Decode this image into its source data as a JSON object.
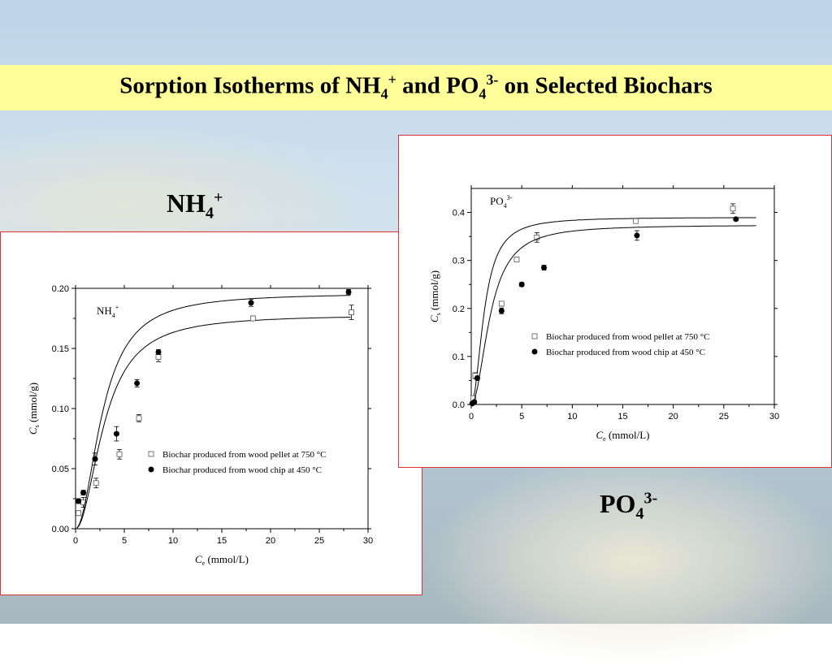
{
  "slide": {
    "title_prefix": "Sorption Isotherms of NH",
    "title_nh_sub": "4",
    "title_nh_sup": "+",
    "title_mid": " and PO",
    "title_po_sub": "4",
    "title_po_sup": "3-",
    "title_suffix": " on Selected Biochars",
    "nh_label": "NH",
    "nh_label_sub": "4",
    "nh_label_sup": "+",
    "po_label": "PO",
    "po_label_sub": "4",
    "po_label_sup": "3-"
  },
  "colors": {
    "title_band": "#ffff99",
    "panel_border": "#dd3333"
  },
  "chart_data": [
    {
      "type": "scatter",
      "inset_label": "NH",
      "inset_sub": "4",
      "inset_sup": "+",
      "xlabel": "C",
      "xlabel_sub": "e",
      "xlabel_unit": " (mmol/L)",
      "ylabel": "C",
      "ylabel_sub": "s",
      "ylabel_unit": " (mmol/g)",
      "xlim": [
        0,
        30
      ],
      "ylim": [
        0,
        0.2
      ],
      "xticks": [
        "0",
        "5",
        "10",
        "15",
        "20",
        "25",
        "30"
      ],
      "yticks": [
        "0.00",
        "0.05",
        "0.10",
        "0.15",
        "0.20"
      ],
      "legend_position": "lower-right",
      "series": [
        {
          "name": "Biochar produced from wood pellet at 750 °C",
          "marker": "open-square",
          "x": [
            0.3,
            0.8,
            2.1,
            4.5,
            6.5,
            8.5,
            18.2,
            28.3
          ],
          "y": [
            0.013,
            0.022,
            0.038,
            0.062,
            0.092,
            0.143,
            0.175,
            0.18
          ],
          "err": [
            0.002,
            0.004,
            0.004,
            0.004,
            0.003,
            0.004,
            0.002,
            0.006
          ],
          "fit": [
            0.0,
            0.178,
            3.0,
            6.8
          ]
        },
        {
          "name": "Biochar produced from wood chip at 450 °C",
          "marker": "filled-circle",
          "x": [
            0.3,
            0.8,
            2.0,
            4.2,
            6.3,
            8.5,
            18.0,
            28.0
          ],
          "y": [
            0.023,
            0.03,
            0.058,
            0.079,
            0.121,
            0.147,
            0.188,
            0.197
          ],
          "err": [
            0.002,
            0.002,
            0.005,
            0.006,
            0.003,
            0.002,
            0.003,
            0.002
          ],
          "fit": [
            0.0,
            0.196,
            2.8,
            6.0
          ]
        }
      ]
    },
    {
      "type": "scatter",
      "inset_label": "PO",
      "inset_sub": "4",
      "inset_sup": "3-",
      "xlabel": "C",
      "xlabel_sub": "e",
      "xlabel_unit": " (mmol/L)",
      "ylabel": "C",
      "ylabel_sub": "s",
      "ylabel_unit": " (mmol/g)",
      "xlim": [
        0,
        30
      ],
      "ylim": [
        0,
        0.45
      ],
      "xticks": [
        "0",
        "5",
        "10",
        "15",
        "20",
        "25",
        "30"
      ],
      "yticks": [
        "0.0",
        "0.1",
        "0.2",
        "0.3",
        "0.4"
      ],
      "legend_position": "center-right",
      "series": [
        {
          "name": "Biochar produced from wood pellet at 750 °C",
          "marker": "open-square",
          "x": [
            0.2,
            0.4,
            3.0,
            4.5,
            6.5,
            16.3,
            25.9
          ],
          "y": [
            0.013,
            0.06,
            0.21,
            0.302,
            0.348,
            0.382,
            0.408
          ],
          "err": [
            0.004,
            0.006,
            0.005,
            0.004,
            0.01,
            0.004,
            0.01
          ],
          "fit": [
            0.0,
            0.39,
            1.3,
            3.0
          ]
        },
        {
          "name": "Biochar produced from wood chip at 450 °C",
          "marker": "filled-circle",
          "x": [
            0.1,
            0.3,
            0.6,
            3.0,
            5.0,
            7.2,
            16.4,
            26.2
          ],
          "y": [
            0.002,
            0.005,
            0.055,
            0.195,
            0.25,
            0.285,
            0.352,
            0.386
          ],
          "err": [
            0.002,
            0.002,
            0.004,
            0.006,
            0.004,
            0.005,
            0.01,
            0.003
          ],
          "fit": [
            0.0,
            0.374,
            1.9,
            4.2
          ]
        }
      ]
    }
  ]
}
